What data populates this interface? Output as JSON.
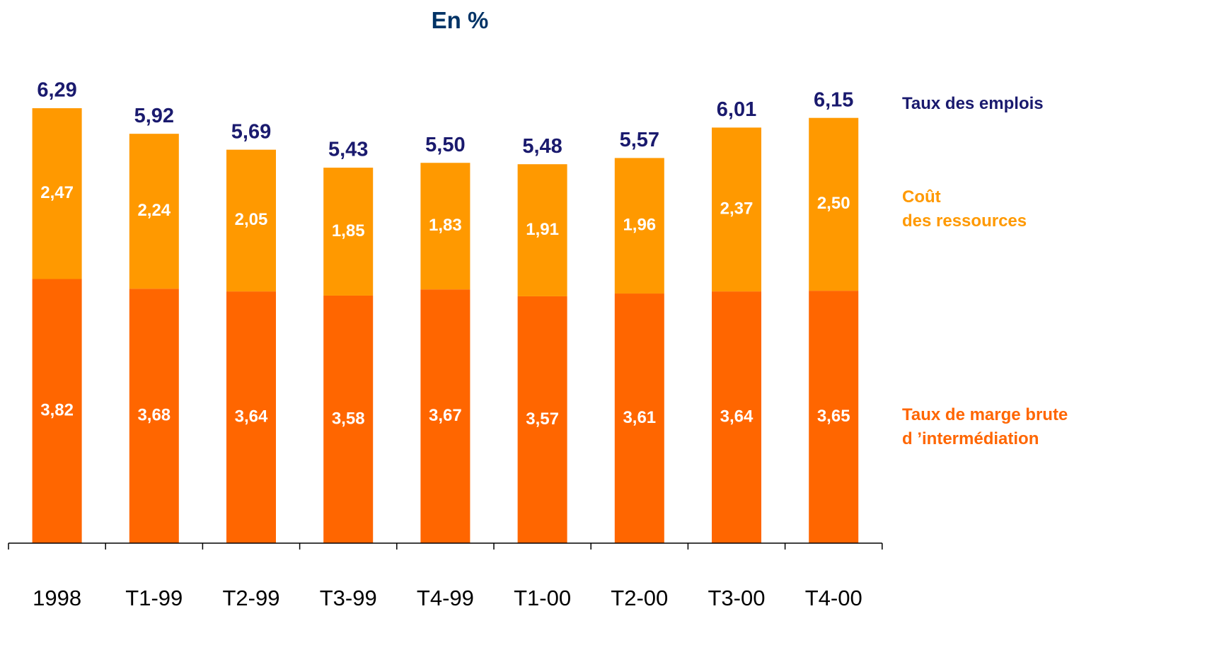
{
  "title": "En %",
  "colors": {
    "title": "#003366",
    "total_label": "#1a1a6e",
    "top_segment": "#ff9900",
    "bottom_segment": "#ff6600",
    "segment_label": "#ffffff",
    "axis": "#000000"
  },
  "legend": {
    "total": "Taux des emplois",
    "top_line1": "Coût",
    "top_line2": "des ressources",
    "bottom_line1": "Taux de marge brute",
    "bottom_line2": "d ’intermédiation"
  },
  "chart_data": {
    "type": "bar",
    "stacked": true,
    "title": "En %",
    "categories": [
      "1998",
      "T1-99",
      "T2-99",
      "T3-99",
      "T4-99",
      "T1-00",
      "T2-00",
      "T3-00",
      "T4-00"
    ],
    "series": [
      {
        "name": "Taux de marge brute d ’intermédiation",
        "values": [
          3.82,
          3.68,
          3.64,
          3.58,
          3.67,
          3.57,
          3.61,
          3.64,
          3.65
        ],
        "labels": [
          "3,82",
          "3,68",
          "3,64",
          "3,58",
          "3,67",
          "3,57",
          "3,61",
          "3,64",
          "3,65"
        ]
      },
      {
        "name": "Coût des ressources",
        "values": [
          2.47,
          2.24,
          2.05,
          1.85,
          1.83,
          1.91,
          1.96,
          2.37,
          2.5
        ],
        "labels": [
          "2,47",
          "2,24",
          "2,05",
          "1,85",
          "1,83",
          "1,91",
          "1,96",
          "2,37",
          "2,50"
        ]
      }
    ],
    "totals": {
      "name": "Taux des emplois",
      "values": [
        6.29,
        5.92,
        5.69,
        5.43,
        5.5,
        5.48,
        5.57,
        6.01,
        6.15
      ],
      "labels": [
        "6,29",
        "5,92",
        "5,69",
        "5,43",
        "5,50",
        "5,48",
        "5,57",
        "6,01",
        "6,15"
      ]
    },
    "ylim": [
      0,
      6.29
    ],
    "grid": false,
    "legend_position": "right"
  }
}
